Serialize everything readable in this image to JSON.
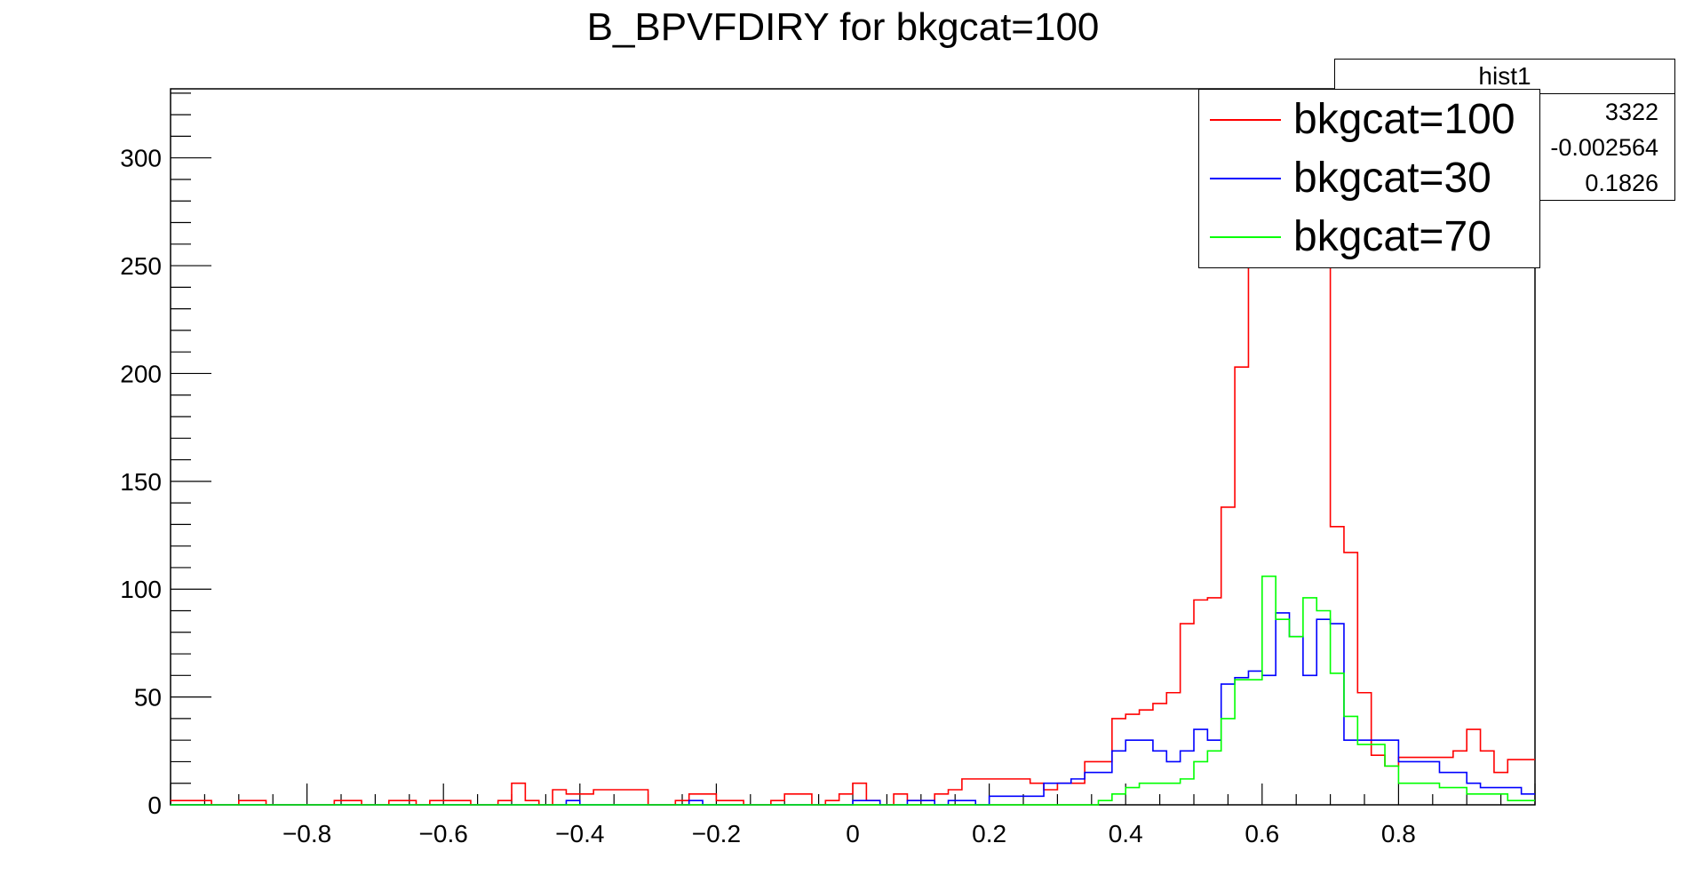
{
  "chart_data": {
    "type": "histogram",
    "title": "B_BPVFDIRY for bkgcat=100",
    "xlabel": "",
    "ylabel": "",
    "xlim": [
      -1,
      1
    ],
    "ylim": [
      0,
      332
    ],
    "x_ticks": [
      "−0.8",
      "−0.6",
      "−0.4",
      "−0.2",
      "0",
      "0.2",
      "0.4",
      "0.6",
      "0.8"
    ],
    "y_ticks": [
      "0",
      "50",
      "100",
      "150",
      "200",
      "250",
      "300"
    ],
    "bins": {
      "n": 100,
      "min": -1,
      "max": 1
    },
    "series": [
      {
        "name": "bkgcat=100",
        "color": "#ff0000",
        "values": [
          2,
          2,
          2,
          0,
          0,
          2,
          2,
          0,
          0,
          0,
          0,
          0,
          2,
          2,
          0,
          0,
          2,
          2,
          0,
          2,
          2,
          2,
          0,
          0,
          2,
          10,
          2,
          0,
          7,
          5,
          5,
          7,
          7,
          7,
          7,
          0,
          0,
          2,
          5,
          5,
          2,
          2,
          0,
          0,
          2,
          5,
          5,
          0,
          2,
          5,
          10,
          2,
          0,
          5,
          2,
          2,
          5,
          7,
          12,
          12,
          12,
          12,
          12,
          10,
          7,
          10,
          10,
          20,
          20,
          40,
          42,
          44,
          47,
          52,
          84,
          95,
          96,
          138,
          203,
          264,
          298,
          316,
          270,
          286,
          282,
          129,
          117,
          52,
          23,
          18,
          22,
          22,
          22,
          22,
          25,
          35,
          25,
          15,
          21,
          21
        ]
      },
      {
        "name": "bkgcat=30",
        "color": "#0000ff",
        "values": [
          0,
          0,
          0,
          0,
          0,
          0,
          0,
          0,
          0,
          0,
          0,
          0,
          0,
          0,
          0,
          0,
          0,
          0,
          0,
          0,
          0,
          0,
          0,
          0,
          0,
          0,
          0,
          0,
          0,
          2,
          0,
          0,
          0,
          0,
          0,
          0,
          0,
          0,
          2,
          0,
          0,
          0,
          0,
          0,
          0,
          0,
          0,
          0,
          0,
          0,
          2,
          2,
          0,
          0,
          2,
          2,
          0,
          2,
          2,
          0,
          4,
          4,
          4,
          4,
          10,
          10,
          12,
          15,
          15,
          25,
          30,
          30,
          25,
          20,
          25,
          35,
          30,
          56,
          59,
          62,
          60,
          89,
          78,
          60,
          86,
          84,
          30,
          30,
          30,
          30,
          20,
          20,
          20,
          15,
          15,
          10,
          8,
          8,
          8,
          5
        ]
      },
      {
        "name": "bkgcat=70",
        "color": "#00ff00",
        "values": [
          0,
          0,
          0,
          0,
          0,
          0,
          0,
          0,
          0,
          0,
          0,
          0,
          0,
          0,
          0,
          0,
          0,
          0,
          0,
          0,
          0,
          0,
          0,
          0,
          0,
          0,
          0,
          0,
          0,
          0,
          0,
          0,
          0,
          0,
          0,
          0,
          0,
          0,
          0,
          0,
          0,
          0,
          0,
          0,
          0,
          0,
          0,
          0,
          0,
          0,
          0,
          0,
          0,
          0,
          0,
          0,
          0,
          0,
          0,
          0,
          0,
          0,
          0,
          0,
          0,
          0,
          0,
          0,
          2,
          5,
          8,
          10,
          10,
          10,
          12,
          20,
          25,
          40,
          58,
          58,
          106,
          86,
          78,
          96,
          90,
          61,
          41,
          28,
          28,
          18,
          10,
          10,
          10,
          8,
          8,
          5,
          5,
          5,
          2,
          2
        ]
      }
    ],
    "legend": {
      "position": "top-right",
      "entries": [
        "bkgcat=100",
        "bkgcat=30",
        "bkgcat=70"
      ]
    },
    "stats_box": {
      "title": "hist1",
      "rows": [
        "3322",
        "-0.002564",
        "0.1826"
      ]
    }
  }
}
